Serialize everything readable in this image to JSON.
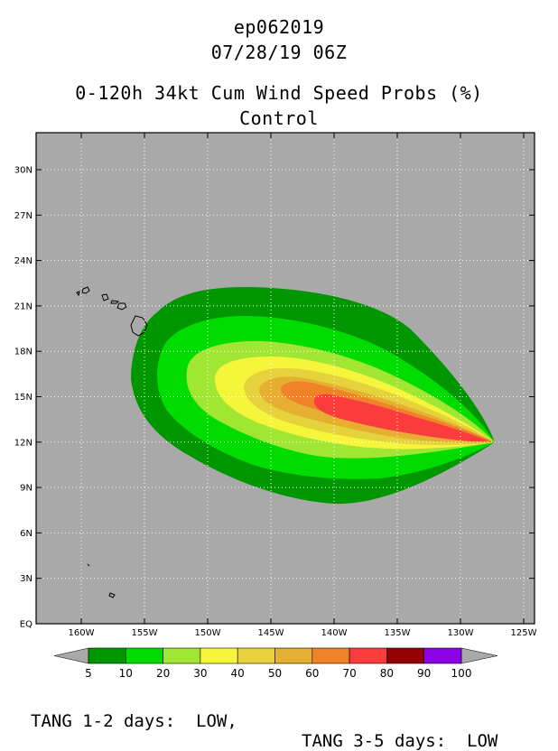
{
  "header": {
    "storm_id": "ep062019",
    "datetime": "07/28/19 06Z",
    "product": "0-120h 34kt Cum Wind Speed Probs (%)",
    "run": "Control"
  },
  "map": {
    "background_color": "#a9a9a9",
    "lat_labels": [
      "30N",
      "27N",
      "24N",
      "21N",
      "18N",
      "15N",
      "12N",
      "9N",
      "6N",
      "3N",
      "EQ"
    ],
    "lon_labels": [
      "160W",
      "155W",
      "150W",
      "145W",
      "140W",
      "135W",
      "130W",
      "125W"
    ]
  },
  "colorbar": {
    "tick_labels": [
      "5",
      "10",
      "20",
      "30",
      "40",
      "50",
      "60",
      "70",
      "80",
      "90",
      "100"
    ],
    "colors": [
      "#009600",
      "#00dc00",
      "#a0e632",
      "#f5f53c",
      "#e6d23c",
      "#e6af32",
      "#f08228",
      "#fa3c3c",
      "#960000",
      "#8c00e6"
    ],
    "arrow_color": "#a9a9a9"
  },
  "footer": {
    "left": "TANG 1-2 days:  LOW,",
    "right": "TANG 3-5 days:  LOW"
  }
}
